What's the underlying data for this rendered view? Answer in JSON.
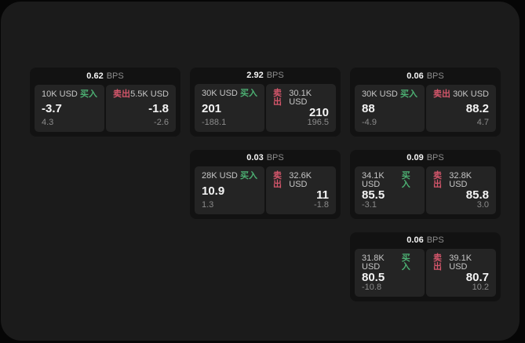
{
  "labels": {
    "bps": "BPS",
    "buy": "买入",
    "sell": "卖出"
  },
  "colors": {
    "buy": "#4caf72",
    "sell": "#d4566b",
    "panel": "#1b1b1b",
    "card": "#121212",
    "pane": "#242424"
  },
  "cards": [
    {
      "col": 1,
      "row": 1,
      "bps": "0.62",
      "buy": {
        "size": "10K USD",
        "value": "-3.7",
        "delta": "4.3"
      },
      "sell": {
        "size": "5.5K USD",
        "value": "-1.8",
        "delta": "-2.6"
      }
    },
    {
      "col": 2,
      "row": 1,
      "bps": "2.92",
      "buy": {
        "size": "30K USD",
        "value": "201",
        "delta": "-188.1"
      },
      "sell": {
        "size": "30.1K USD",
        "value": "210",
        "delta": "196.5"
      }
    },
    {
      "col": 3,
      "row": 1,
      "bps": "0.06",
      "buy": {
        "size": "30K USD",
        "value": "88",
        "delta": "-4.9"
      },
      "sell": {
        "size": "30K USD",
        "value": "88.2",
        "delta": "4.7"
      }
    },
    {
      "col": 2,
      "row": 2,
      "bps": "0.03",
      "buy": {
        "size": "28K USD",
        "value": "10.9",
        "delta": "1.3"
      },
      "sell": {
        "size": "32.6K USD",
        "value": "11",
        "delta": "-1.8"
      }
    },
    {
      "col": 3,
      "row": 2,
      "bps": "0.09",
      "buy": {
        "size": "34.1K USD",
        "value": "85.5",
        "delta": "-3.1"
      },
      "sell": {
        "size": "32.8K USD",
        "value": "85.8",
        "delta": "3.0"
      }
    },
    {
      "col": 3,
      "row": 3,
      "bps": "0.06",
      "buy": {
        "size": "31.8K USD",
        "value": "80.5",
        "delta": "-10.8"
      },
      "sell": {
        "size": "39.1K USD",
        "value": "80.7",
        "delta": "10.2"
      }
    }
  ]
}
